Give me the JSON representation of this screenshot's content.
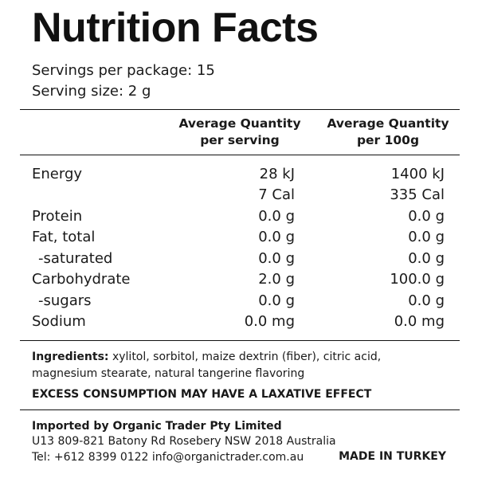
{
  "title": "Nutrition Facts",
  "servings_per_package": "Servings per package: 15",
  "serving_size": "Serving size: 2 g",
  "columns": {
    "per_serving": [
      "Average Quantity",
      "per serving"
    ],
    "per_100g": [
      "Average Quantity",
      "per 100g"
    ]
  },
  "rows": [
    {
      "label": "Energy",
      "per_serving": "28 kJ",
      "per_100g": "1400 kJ"
    },
    {
      "label": "",
      "per_serving": "7 Cal",
      "per_100g": "335 Cal"
    },
    {
      "label": "Protein",
      "per_serving": "0.0 g",
      "per_100g": "0.0 g"
    },
    {
      "label": "Fat, total",
      "per_serving": "0.0 g",
      "per_100g": "0.0 g"
    },
    {
      "label": "-saturated",
      "per_serving": "0.0 g",
      "per_100g": "0.0 g"
    },
    {
      "label": "Carbohydrate",
      "per_serving": "2.0 g",
      "per_100g": "100.0 g"
    },
    {
      "label": "-sugars",
      "per_serving": "0.0 g",
      "per_100g": "0.0 g"
    },
    {
      "label": "Sodium",
      "per_serving": "0.0 mg",
      "per_100g": "0.0 mg"
    }
  ],
  "ingredients": {
    "heading": "Ingredients:",
    "line1": " xylitol, sorbitol, maize dextrin (fiber), citric acid,",
    "line2": "magnesium stearate, natural tangerine flavoring"
  },
  "warning": "EXCESS CONSUMPTION MAY HAVE A LAXATIVE EFFECT",
  "importer": {
    "name": "Imported by Organic Trader Pty Limited",
    "address": "U13 809-821 Batony Rd Rosebery NSW 2018 Australia",
    "contact": "Tel: +612 8399 0122 info@organictrader.com.au"
  },
  "made_in": "MADE IN TURKEY"
}
